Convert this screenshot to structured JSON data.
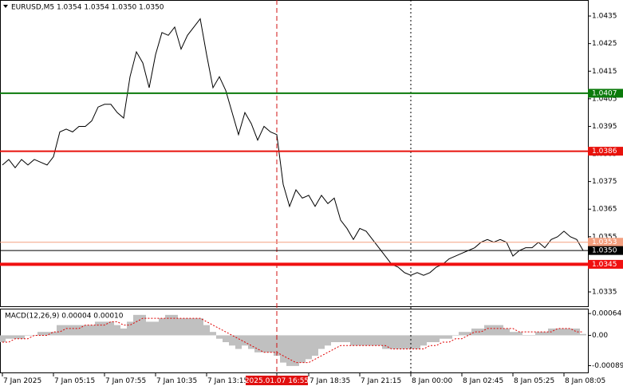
{
  "chart_data": [
    {
      "type": "line",
      "title": "EURUSD,M5  1.0354 1.0354 1.0350 1.0350",
      "color": "#000000",
      "categories": [
        "7 Jan 2025",
        null,
        null,
        null,
        null,
        null,
        null,
        null,
        "7 Jan 05:15",
        null,
        null,
        null,
        null,
        null,
        null,
        null,
        "7 Jan 07:55",
        null,
        null,
        null,
        null,
        null,
        null,
        null,
        "7 Jan 10:35",
        null,
        null,
        null,
        null,
        null,
        null,
        null,
        "7 Jan 13:15",
        null,
        null,
        null,
        null,
        null,
        null,
        null,
        null,
        null,
        null,
        "2025.01.07 16:55",
        null,
        null,
        null,
        null,
        "7 Jan 18:35",
        null,
        null,
        null,
        null,
        null,
        null,
        null,
        "7 Jan 21:15",
        null,
        null,
        null,
        null,
        null,
        null,
        null,
        "8 Jan 00:00",
        null,
        null,
        null,
        null,
        null,
        null,
        null,
        "8 Jan 02:45",
        null,
        null,
        null,
        null,
        null,
        null,
        null,
        "8 Jan 05:25",
        null,
        null,
        null,
        null,
        null,
        null,
        null,
        "8 Jan 08:05",
        null,
        null,
        null
      ],
      "values": [
        1.0381,
        1.0383,
        1.038,
        1.0383,
        1.0381,
        1.0383,
        1.0382,
        1.0381,
        1.0384,
        1.0393,
        1.0394,
        1.0393,
        1.0395,
        1.0395,
        1.0397,
        1.0402,
        1.0403,
        1.0403,
        1.04,
        1.0398,
        1.0413,
        1.0422,
        1.0418,
        1.0409,
        1.0421,
        1.0429,
        1.0428,
        1.0431,
        1.0423,
        1.0428,
        1.0431,
        1.0434,
        1.0421,
        1.0409,
        1.0413,
        1.0408,
        1.04,
        1.0392,
        1.04,
        1.0396,
        1.039,
        1.0395,
        1.0393,
        1.0392,
        1.0374,
        1.0366,
        1.0372,
        1.0369,
        1.037,
        1.0366,
        1.037,
        1.0367,
        1.0369,
        1.0361,
        1.0358,
        1.0354,
        1.0358,
        1.0357,
        1.0354,
        1.0351,
        1.0348,
        1.0345,
        1.0344,
        1.0342,
        1.0341,
        1.0342,
        1.0341,
        1.0342,
        1.0344,
        1.0345,
        1.0347,
        1.0348,
        1.0349,
        1.035,
        1.0351,
        1.0353,
        1.0354,
        1.0353,
        1.0354,
        1.0353,
        1.0348,
        1.035,
        1.0351,
        1.0351,
        1.0353,
        1.0351,
        1.0354,
        1.0355,
        1.0357,
        1.0355,
        1.0354,
        1.035
      ],
      "ylim": [
        1.03298,
        1.04408
      ],
      "yticks": [
        1.0435,
        1.0425,
        1.0415,
        1.0405,
        1.0395,
        1.0385,
        1.0375,
        1.0365,
        1.0355,
        1.0345,
        1.0335
      ],
      "levels": [
        {
          "value": 1.0407,
          "color": "#0b7a0b"
        },
        {
          "value": 1.0386,
          "color": "#e8120c"
        },
        {
          "value": 1.0353,
          "color": "#f4a080"
        },
        {
          "value": 1.035,
          "label": "1.0350",
          "color": "#000000"
        },
        {
          "value": 1.0345,
          "color": "#f01010"
        }
      ]
    },
    {
      "type": "bar",
      "title": "MACD(12,26,9) 0.00004 0.00010",
      "color": "#c0c0c0",
      "signal_color": "#e00000",
      "values": [
        -0.0002,
        -0.0001,
        -0.0001,
        -0.0001,
        0,
        0,
        0.0001,
        0.0001,
        0.0001,
        0.0003,
        0.0003,
        0.0003,
        0.0003,
        0.0003,
        0.0003,
        0.0004,
        0.0004,
        0.0004,
        0.0003,
        0.0002,
        0.0004,
        0.0006,
        0.0006,
        0.0004,
        0.0004,
        0.0005,
        0.0006,
        0.0006,
        0.0005,
        0.0005,
        0.0005,
        0.0005,
        0.0003,
        0.0001,
        -0.0001,
        -0.0002,
        -0.0003,
        -0.0004,
        -0.0003,
        -0.0004,
        -0.0005,
        -0.0005,
        -0.0005,
        -0.0006,
        -0.0008,
        -0.0009,
        -0.0009,
        -0.0008,
        -0.0007,
        -0.0006,
        -0.0004,
        -0.0003,
        -0.0002,
        -0.0002,
        -0.0002,
        -0.0003,
        -0.0003,
        -0.0003,
        -0.0003,
        -0.0003,
        -0.0004,
        -0.0004,
        -0.0004,
        -0.0004,
        -0.0004,
        -0.0004,
        -0.0003,
        -0.0002,
        -0.0002,
        -0.0001,
        -0.0001,
        0,
        0.0001,
        0.0001,
        0.0002,
        0.0002,
        0.0003,
        0.0003,
        0.0003,
        0.0002,
        0.0001,
        0.0001,
        0,
        0,
        0.0001,
        0.0001,
        0.0002,
        0.0002,
        0.0002,
        0.0002,
        0.0002,
        4e-05
      ],
      "signal": [
        -0.0002,
        -0.0002,
        -0.0001,
        -0.0001,
        -0.0001,
        0,
        0,
        0,
        0.0001,
        0.0001,
        0.0002,
        0.0002,
        0.0002,
        0.0003,
        0.0003,
        0.0003,
        0.0003,
        0.0004,
        0.0004,
        0.0003,
        0.0003,
        0.0004,
        0.0005,
        0.0005,
        0.0005,
        0.0005,
        0.0005,
        0.0005,
        0.0005,
        0.0005,
        0.0005,
        0.0005,
        0.0004,
        0.0003,
        0.0002,
        0.0001,
        0,
        -0.0001,
        -0.0002,
        -0.0003,
        -0.0004,
        -0.0005,
        -0.0005,
        -0.0005,
        -0.0006,
        -0.0007,
        -0.0008,
        -0.0008,
        -0.0008,
        -0.0007,
        -0.0006,
        -0.0005,
        -0.0004,
        -0.0003,
        -0.0003,
        -0.0003,
        -0.0003,
        -0.0003,
        -0.0003,
        -0.0003,
        -0.0003,
        -0.0004,
        -0.0004,
        -0.0004,
        -0.0004,
        -0.0004,
        -0.0004,
        -0.0003,
        -0.0003,
        -0.0002,
        -0.0002,
        -0.0001,
        -0.0001,
        0,
        0.0001,
        0.0001,
        0.0002,
        0.0002,
        0.0002,
        0.0002,
        0.0002,
        0.0001,
        0.0001,
        0.0001,
        0.0001,
        0.0001,
        0.0001,
        0.0002,
        0.0002,
        0.0002,
        0.0001,
        0.0001
      ],
      "ylim": [
        -0.00109,
        0.00076
      ],
      "yticks": [
        0.00064,
        {
          "value": 0,
          "label": "0.00"
        },
        -0.00089
      ]
    }
  ]
}
